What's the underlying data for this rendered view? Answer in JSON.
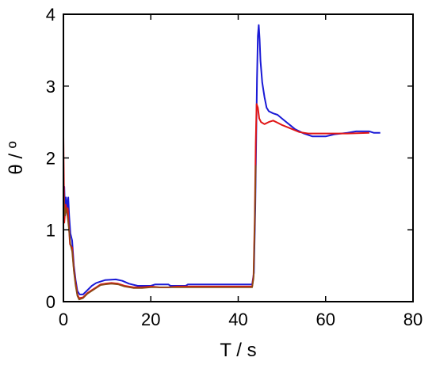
{
  "chart_data": {
    "type": "line",
    "title": "",
    "xlabel": "T / s",
    "ylabel": "θ / º",
    "xlim": [
      0,
      80
    ],
    "ylim": [
      0,
      4
    ],
    "xticks": [
      0,
      20,
      40,
      60,
      80
    ],
    "yticks": [
      0,
      1,
      2,
      3,
      4
    ],
    "xtick_labels": [
      "0",
      "20",
      "40",
      "60",
      "80"
    ],
    "ytick_labels": [
      "0",
      "1",
      "2",
      "3",
      "4"
    ],
    "grid": false,
    "legend": "none",
    "series": [
      {
        "color": "#1a1ad6",
        "points": [
          [
            0.0,
            1.55
          ],
          [
            0.2,
            1.6
          ],
          [
            0.4,
            1.2
          ],
          [
            0.6,
            1.45
          ],
          [
            0.9,
            1.3
          ],
          [
            1.1,
            1.45
          ],
          [
            1.3,
            1.2
          ],
          [
            1.6,
            0.95
          ],
          [
            2.0,
            0.85
          ],
          [
            2.4,
            0.5
          ],
          [
            2.8,
            0.3
          ],
          [
            3.2,
            0.15
          ],
          [
            3.7,
            0.1
          ],
          [
            4.5,
            0.1
          ],
          [
            5.5,
            0.16
          ],
          [
            6.5,
            0.22
          ],
          [
            7.5,
            0.26
          ],
          [
            8.5,
            0.28
          ],
          [
            9.5,
            0.3
          ],
          [
            12.0,
            0.31
          ],
          [
            13.5,
            0.29
          ],
          [
            15.0,
            0.25
          ],
          [
            17.0,
            0.22
          ],
          [
            20.0,
            0.22
          ],
          [
            21.0,
            0.24
          ],
          [
            24.0,
            0.24
          ],
          [
            24.5,
            0.22
          ],
          [
            28.0,
            0.22
          ],
          [
            28.5,
            0.24
          ],
          [
            40.0,
            0.24
          ],
          [
            43.2,
            0.24
          ],
          [
            43.6,
            0.4
          ],
          [
            43.9,
            1.3
          ],
          [
            44.1,
            2.2
          ],
          [
            44.3,
            3.1
          ],
          [
            44.5,
            3.7
          ],
          [
            44.7,
            3.85
          ],
          [
            44.9,
            3.65
          ],
          [
            45.1,
            3.35
          ],
          [
            45.5,
            3.05
          ],
          [
            46.0,
            2.85
          ],
          [
            46.5,
            2.7
          ],
          [
            47.0,
            2.65
          ],
          [
            48.0,
            2.62
          ],
          [
            49.0,
            2.6
          ],
          [
            50.0,
            2.55
          ],
          [
            51.0,
            2.5
          ],
          [
            52.0,
            2.45
          ],
          [
            53.0,
            2.4
          ],
          [
            55.0,
            2.34
          ],
          [
            57.0,
            2.3
          ],
          [
            60.0,
            2.3
          ],
          [
            62.0,
            2.33
          ],
          [
            65.0,
            2.35
          ],
          [
            67.0,
            2.37
          ],
          [
            70.0,
            2.37
          ],
          [
            71.0,
            2.35
          ],
          [
            72.5,
            2.35
          ]
        ]
      },
      {
        "color": "#e01515",
        "points": [
          [
            0.0,
            2.3
          ],
          [
            0.2,
            1.1
          ],
          [
            0.5,
            1.35
          ],
          [
            0.8,
            1.25
          ],
          [
            1.0,
            1.3
          ],
          [
            1.2,
            1.1
          ],
          [
            1.5,
            0.8
          ],
          [
            2.0,
            0.75
          ],
          [
            2.4,
            0.45
          ],
          [
            2.8,
            0.25
          ],
          [
            3.2,
            0.1
          ],
          [
            3.6,
            0.05
          ],
          [
            4.5,
            0.06
          ],
          [
            5.5,
            0.12
          ],
          [
            6.5,
            0.16
          ],
          [
            7.5,
            0.2
          ],
          [
            8.5,
            0.24
          ],
          [
            9.5,
            0.25
          ],
          [
            11.0,
            0.26
          ],
          [
            12.5,
            0.25
          ],
          [
            14.0,
            0.22
          ],
          [
            16.0,
            0.2
          ],
          [
            18.0,
            0.2
          ],
          [
            20.0,
            0.21
          ],
          [
            22.0,
            0.2
          ],
          [
            24.0,
            0.2
          ],
          [
            26.0,
            0.21
          ],
          [
            30.0,
            0.21
          ],
          [
            35.0,
            0.21
          ],
          [
            40.0,
            0.21
          ],
          [
            43.2,
            0.21
          ],
          [
            43.5,
            0.35
          ],
          [
            43.8,
            1.2
          ],
          [
            44.0,
            2.2
          ],
          [
            44.2,
            2.75
          ],
          [
            44.5,
            2.7
          ],
          [
            44.8,
            2.55
          ],
          [
            45.2,
            2.5
          ],
          [
            46.0,
            2.47
          ],
          [
            47.0,
            2.5
          ],
          [
            48.0,
            2.52
          ],
          [
            49.0,
            2.49
          ],
          [
            50.0,
            2.46
          ],
          [
            52.0,
            2.41
          ],
          [
            54.0,
            2.36
          ],
          [
            56.0,
            2.34
          ],
          [
            60.0,
            2.34
          ],
          [
            65.0,
            2.34
          ],
          [
            70.0,
            2.35
          ]
        ]
      },
      {
        "color": "#8b4a16",
        "points": [
          [
            0.0,
            1.5
          ],
          [
            0.3,
            1.2
          ],
          [
            0.6,
            1.3
          ],
          [
            0.9,
            1.2
          ],
          [
            1.2,
            1.05
          ],
          [
            1.6,
            0.8
          ],
          [
            2.0,
            0.7
          ],
          [
            2.4,
            0.42
          ],
          [
            2.8,
            0.22
          ],
          [
            3.2,
            0.08
          ],
          [
            3.6,
            0.03
          ],
          [
            4.5,
            0.05
          ],
          [
            5.5,
            0.11
          ],
          [
            6.5,
            0.15
          ],
          [
            7.5,
            0.19
          ],
          [
            8.5,
            0.23
          ],
          [
            9.5,
            0.24
          ],
          [
            11.0,
            0.25
          ],
          [
            12.5,
            0.24
          ],
          [
            14.0,
            0.21
          ],
          [
            16.0,
            0.19
          ],
          [
            18.0,
            0.19
          ],
          [
            20.0,
            0.2
          ],
          [
            22.0,
            0.2
          ],
          [
            26.0,
            0.2
          ],
          [
            30.0,
            0.2
          ],
          [
            35.0,
            0.2
          ],
          [
            40.0,
            0.2
          ],
          [
            43.2,
            0.2
          ],
          [
            43.5,
            0.32
          ],
          [
            43.8,
            1.1
          ],
          [
            44.0,
            1.9
          ]
        ]
      }
    ]
  }
}
